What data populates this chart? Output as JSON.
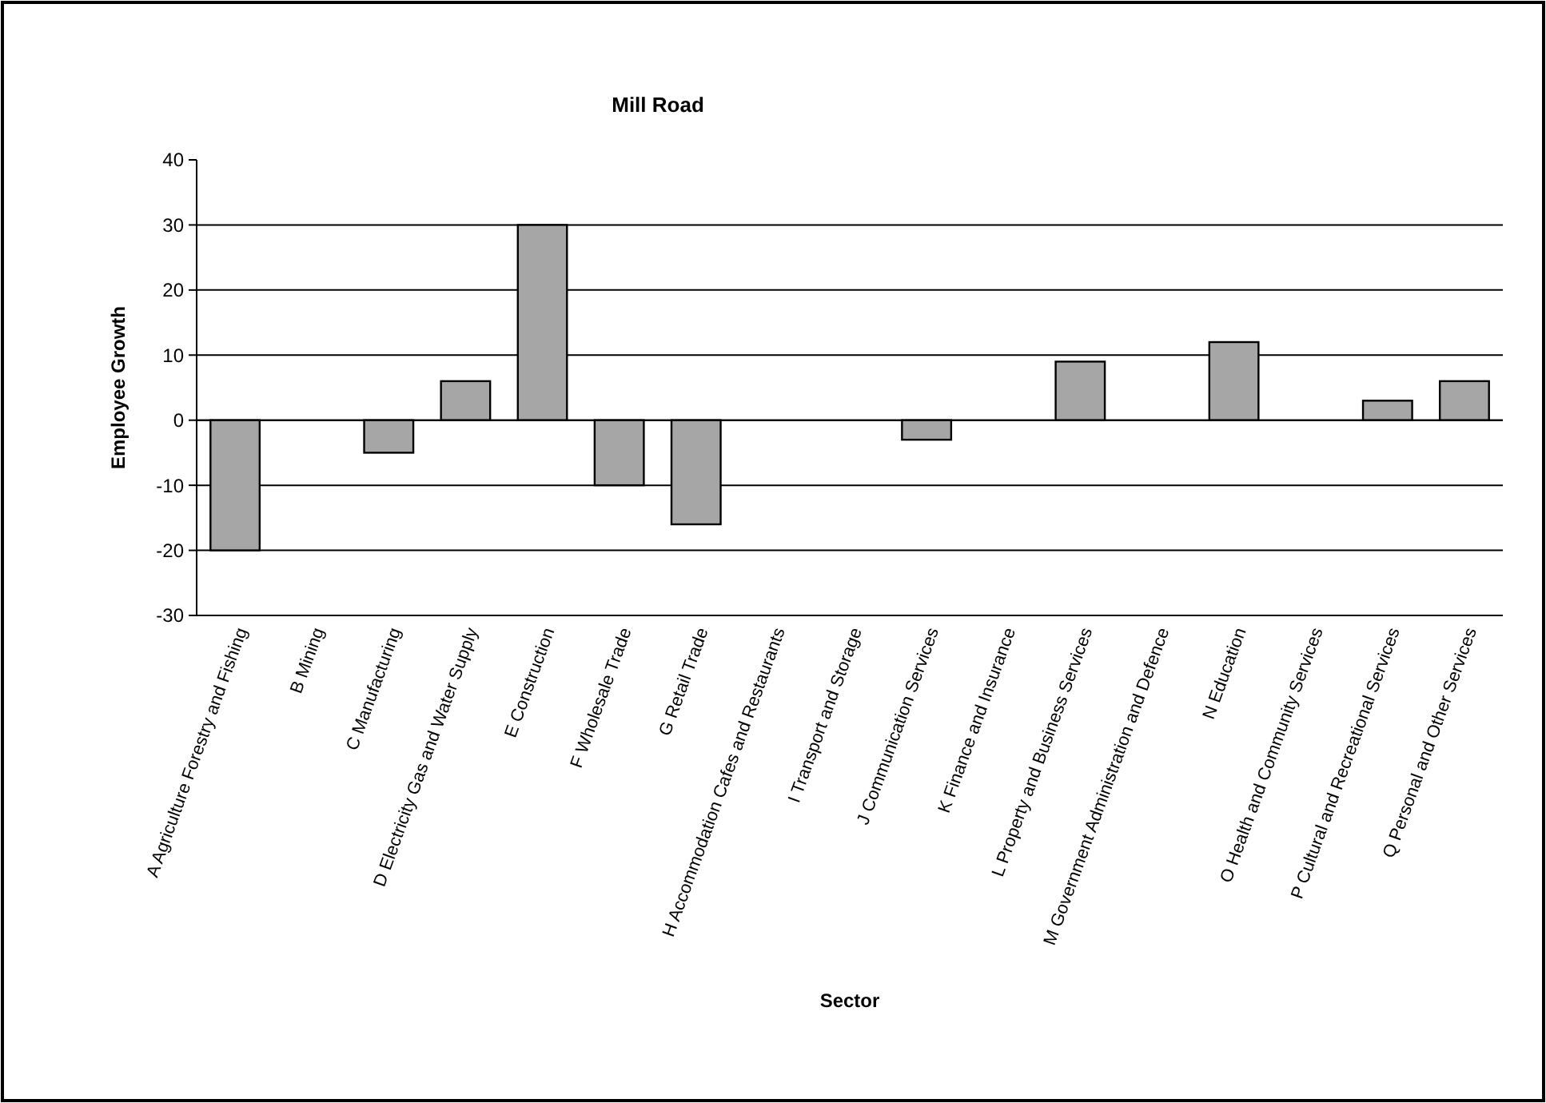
{
  "chart_data": {
    "type": "bar",
    "title": "Mill Road",
    "xlabel": "Sector",
    "ylabel": "Employee Growth",
    "categories": [
      "A Agriculture Forestry and Fishing",
      "B Mining",
      "C Manufacturing",
      "D Electricity Gas and Water Supply",
      "E Construction",
      "F Wholesale Trade",
      "G Retail Trade",
      "H Accommodation Cafes and Restaurants",
      "I Transport and Storage",
      "J Communication Services",
      "K Finance and Insurance",
      "L Property and Business Services",
      "M Government Administration and Defence",
      "N Education",
      "O Health and Community Services",
      "P Cultural and Recreational Services",
      "Q Personal and Other Services"
    ],
    "values": [
      -20,
      0,
      -5,
      6,
      30,
      -10,
      -16,
      0,
      0,
      -3,
      0,
      9,
      0,
      12,
      0,
      3,
      6
    ],
    "color": "#a6a6a6",
    "ylim": [
      -30,
      40
    ],
    "yticks": [
      -30,
      -20,
      -10,
      0,
      10,
      20,
      30,
      40
    ],
    "grid": "y"
  }
}
